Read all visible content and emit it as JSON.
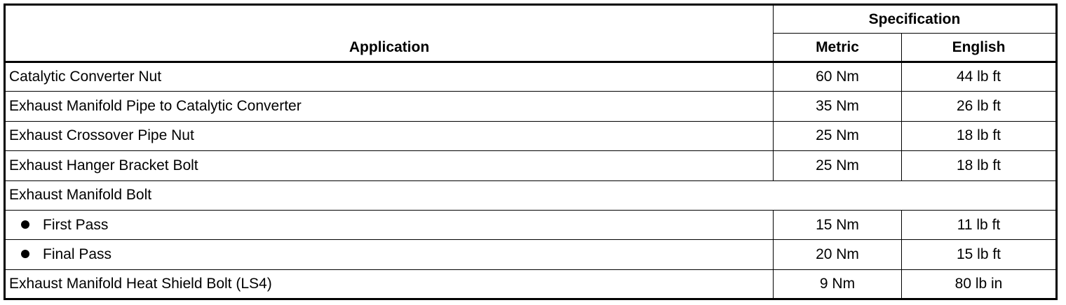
{
  "table": {
    "headers": {
      "application": "Application",
      "specification": "Specification",
      "metric": "Metric",
      "english": "English"
    },
    "rows": [
      {
        "application": "Catalytic Converter Nut",
        "metric": "60 Nm",
        "english": "44 lb ft"
      },
      {
        "application": "Exhaust Manifold Pipe to Catalytic Converter",
        "metric": "35 Nm",
        "english": "26 lb ft"
      },
      {
        "application": "Exhaust Crossover Pipe Nut",
        "metric": "25 Nm",
        "english": "18 lb ft"
      },
      {
        "application": "Exhaust Hanger Bracket Bolt",
        "metric": "25 Nm",
        "english": "18 lb ft"
      },
      {
        "application": "Exhaust Manifold Bolt"
      },
      {
        "application": "First Pass",
        "metric": "15 Nm",
        "english": "11 lb ft",
        "bullet": true
      },
      {
        "application": "Final Pass",
        "metric": "20 Nm",
        "english": "15 lb ft",
        "bullet": true
      },
      {
        "application": "Exhaust Manifold Heat Shield Bolt (LS4)",
        "metric": "9 Nm",
        "english": "80 lb in"
      }
    ]
  }
}
